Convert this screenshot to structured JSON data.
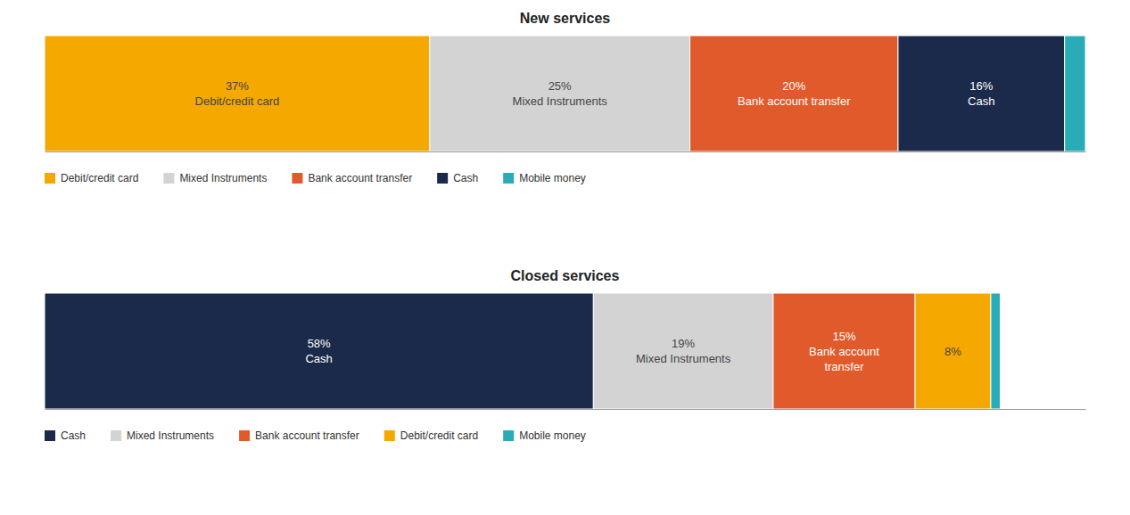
{
  "chart_data": [
    {
      "type": "bar",
      "orientation": "horizontal",
      "stacked": true,
      "title": "New services",
      "categories": [
        null
      ],
      "series": [
        {
          "name": "Debit/credit card",
          "color": "#F5A800",
          "values": [
            37
          ],
          "value_labels": [
            "37%\nDebit/credit card"
          ]
        },
        {
          "name": "Mixed Instruments",
          "color": "#D3D3D3",
          "values": [
            25
          ],
          "value_labels": [
            "25%\nMixed Instruments"
          ]
        },
        {
          "name": "Bank account transfer",
          "color": "#E05A2B",
          "values": [
            20
          ],
          "value_labels": [
            "20%\nBank account transfer"
          ]
        },
        {
          "name": "Cash",
          "color": "#1B2A4A",
          "values": [
            16
          ],
          "value_labels": [
            "16%\nCash"
          ]
        },
        {
          "name": "Mobile money",
          "color": "#2AACB8",
          "values": [
            2
          ]
        }
      ],
      "xlim": [
        0,
        100
      ],
      "data_labels": true,
      "tick_labels": false,
      "legend": "bottom",
      "grid": false
    },
    {
      "type": "bar",
      "orientation": "horizontal",
      "stacked": true,
      "title": "Closed services",
      "categories": [
        null
      ],
      "series": [
        {
          "name": "Cash",
          "color": "#1B2A4A",
          "values": [
            58
          ],
          "value_labels": [
            "58%\nCash"
          ]
        },
        {
          "name": "Mixed Instruments",
          "color": "#D3D3D3",
          "values": [
            19
          ],
          "value_labels": [
            "19%\nMixed Instruments"
          ]
        },
        {
          "name": "Bank account transfer",
          "color": "#E05A2B",
          "values": [
            15
          ],
          "value_labels": [
            "15%\nBank account\ntransfer"
          ]
        },
        {
          "name": "Debit/credit card",
          "color": "#F5A800",
          "values": [
            8
          ],
          "value_labels": [
            "8%"
          ]
        },
        {
          "name": "Mobile money",
          "color": "#2AACB8",
          "values": [
            1
          ]
        }
      ],
      "xlim": [
        0,
        110
      ],
      "data_labels": true,
      "tick_labels": false,
      "legend": "bottom",
      "grid": false
    }
  ]
}
